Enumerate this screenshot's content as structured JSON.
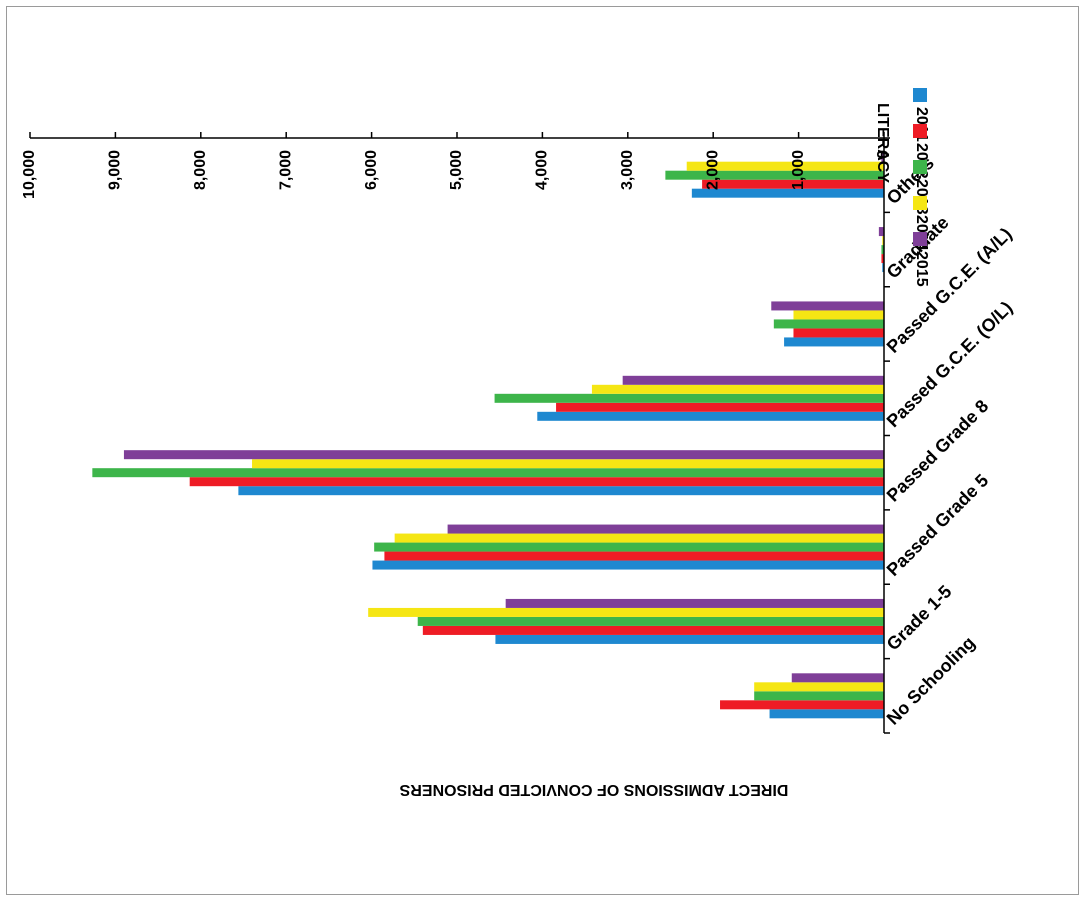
{
  "chart_data": {
    "type": "bar",
    "orientation": "horizontal",
    "title": "",
    "xlabel": "DIRECT ADMISSIONS OF CONVICTED PRISONERS",
    "ylabel": "LITERACY",
    "xlim": [
      0,
      10000
    ],
    "xticks": [
      "0",
      "1,000",
      "2,000",
      "3,000",
      "4,000",
      "5,000",
      "6,000",
      "7,000",
      "8,000",
      "9,000",
      "10,000"
    ],
    "categories": [
      "No Schooling",
      "Grade 1-5",
      "Passed Grade 5",
      "Passed Grade 8",
      "Passed G.C.E. (O/L)",
      "Passed G.C.E. (A/L)",
      "Graduate",
      "Others"
    ],
    "series": [
      {
        "name": "2011",
        "color": "#1E88D0",
        "values": [
          1340,
          4550,
          5990,
          7560,
          4060,
          1170,
          20,
          2250
        ]
      },
      {
        "name": "2012",
        "color": "#EE1C25",
        "values": [
          1920,
          5400,
          5850,
          8130,
          3840,
          1060,
          30,
          2130
        ]
      },
      {
        "name": "2013",
        "color": "#3DB54A",
        "values": [
          1520,
          5460,
          5970,
          9270,
          4560,
          1290,
          30,
          2560
        ]
      },
      {
        "name": "2014",
        "color": "#F5E614",
        "values": [
          1520,
          6040,
          5730,
          7400,
          3420,
          1060,
          20,
          2310
        ]
      },
      {
        "name": "2015",
        "color": "#7F3F98",
        "values": [
          1080,
          4430,
          5110,
          8900,
          3060,
          1320,
          60,
          30
        ]
      }
    ],
    "legend_position": "top-right",
    "grid": false
  }
}
